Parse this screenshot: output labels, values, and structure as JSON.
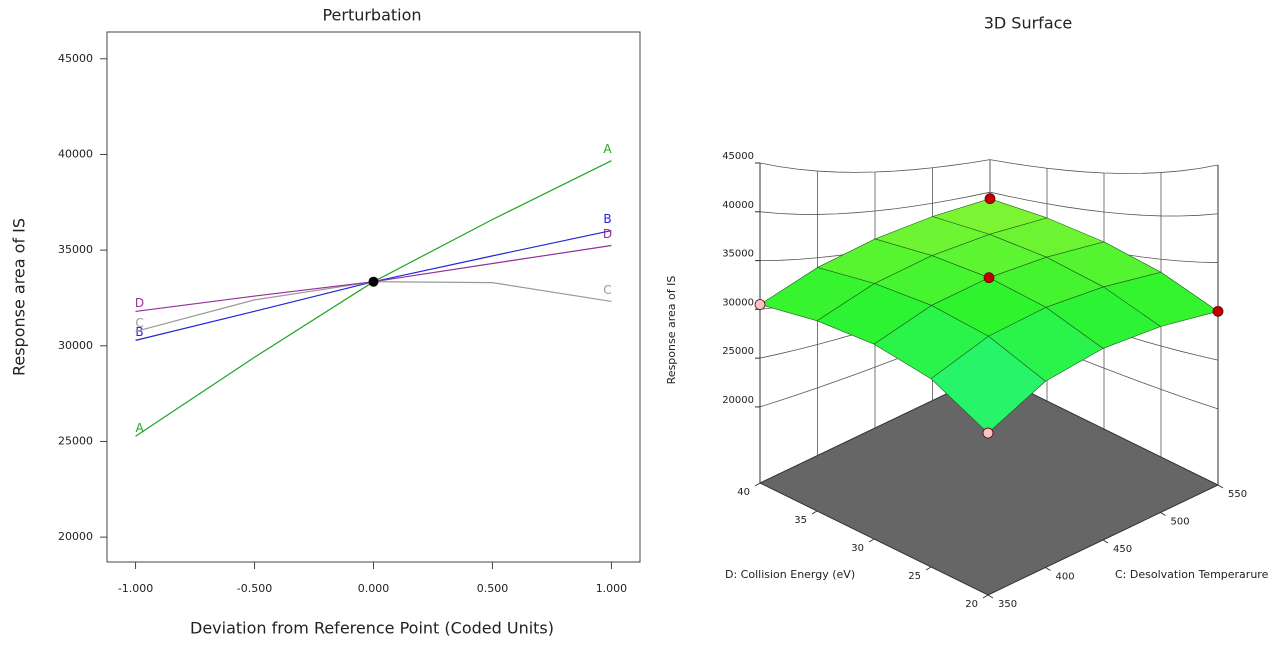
{
  "chart_data": [
    {
      "type": "line",
      "title": "Perturbation",
      "xlabel": "Deviation from Reference Point (Coded Units)",
      "ylabel": "Response area of IS",
      "x": [
        -1,
        -0.5,
        0,
        0.5,
        1
      ],
      "series": [
        {
          "name": "A",
          "color": "#1fa51f",
          "values": [
            25271,
            29400,
            33350,
            36600,
            39676
          ]
        },
        {
          "name": "B",
          "color": "#2424d8",
          "values": [
            30282,
            31800,
            33350,
            34700,
            36023
          ]
        },
        {
          "name": "C",
          "color": "#9a9a9a",
          "values": [
            30750,
            32400,
            33350,
            33300,
            32317
          ]
        },
        {
          "name": "D",
          "color": "#93309a",
          "values": [
            31795,
            32600,
            33350,
            34300,
            35240
          ]
        }
      ],
      "reference_point": {
        "x": 0,
        "y": 33350
      },
      "xlim": [
        -1.12,
        1.12
      ],
      "xticks": [
        {
          "value": -1,
          "label": "-1.000"
        },
        {
          "value": -0.5,
          "label": "-0.500"
        },
        {
          "value": 0,
          "label": "0.000"
        },
        {
          "value": 0.5,
          "label": "0.500"
        },
        {
          "value": 1,
          "label": "1.000"
        }
      ],
      "ylim": [
        18700,
        46400
      ],
      "yticks": [
        20000,
        25000,
        30000,
        35000,
        40000,
        45000
      ]
    },
    {
      "type": "surface3d",
      "title": "3D Surface",
      "xlabel": "C: Desolvation Temperarure",
      "ylabel": "D: Collision Energy (eV)",
      "zlabel": "Response area of IS",
      "x": [
        350,
        400,
        450,
        500,
        550
      ],
      "y": [
        20,
        25,
        30,
        35,
        40
      ],
      "z": [
        [
          20500,
          24131,
          26925,
          28881,
          30000
        ],
        [
          24256,
          27825,
          30556,
          32450,
          33506
        ],
        [
          27175,
          30681,
          33350,
          35181,
          36175
        ],
        [
          29256,
          32700,
          35306,
          37075,
          38006
        ],
        [
          30500,
          33881,
          36425,
          38131,
          39000
        ]
      ],
      "design_points": [
        {
          "x": 350,
          "y": 20,
          "z": 20500,
          "color": "#f6c4c4"
        },
        {
          "x": 350,
          "y": 40,
          "z": 30500,
          "color": "#f6c4c4"
        },
        {
          "x": 550,
          "y": 20,
          "z": 30000,
          "color": "#c00000"
        },
        {
          "x": 550,
          "y": 40,
          "z": 39000,
          "color": "#c00000"
        },
        {
          "x": 450,
          "y": 30,
          "z": 33350,
          "color": "#c00000"
        }
      ],
      "xlim": [
        350,
        550
      ],
      "xticks": [
        350,
        400,
        450,
        500,
        550
      ],
      "ylim": [
        20,
        40
      ],
      "yticks": [
        20,
        25,
        30,
        35,
        40
      ],
      "zlim": [
        12200,
        45000
      ],
      "zticks": [
        20000,
        25000,
        30000,
        35000,
        40000,
        45000
      ]
    }
  ]
}
